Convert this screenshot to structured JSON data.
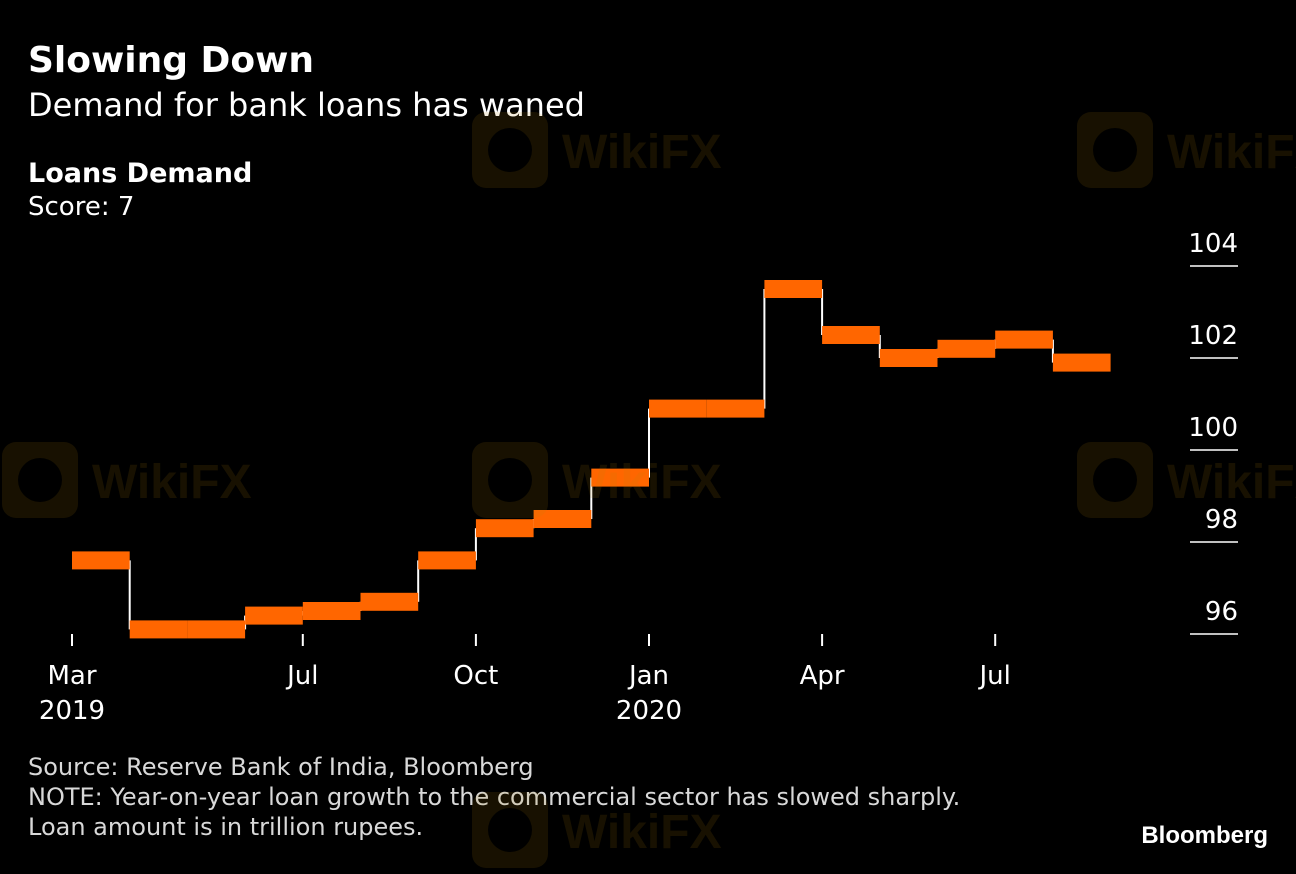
{
  "header": {
    "title": "Slowing Down",
    "subtitle": "Demand for bank loans has waned"
  },
  "panel": {
    "title": "Loans Demand",
    "score": "Score: 7"
  },
  "footer": {
    "source": "Source: Reserve Bank of India, Bloomberg",
    "note_line1": "NOTE: Year-on-year loan growth to the commercial sector has slowed sharply.",
    "note_line2": "Loan amount is in trillion rupees."
  },
  "brand": "Bloomberg",
  "watermark": "WikiFX",
  "colors": {
    "background": "#000000",
    "series": "#ff6600",
    "step_line": "#ffffff",
    "text": "#ffffff"
  },
  "chart_data": {
    "type": "line",
    "style": "step",
    "title": "Loans Demand",
    "subtitle": "Score: 7",
    "xlabel": "",
    "ylabel": "",
    "ylim": [
      96,
      104
    ],
    "y_ticks": [
      96,
      98,
      100,
      102,
      104
    ],
    "y_axis_side": "right",
    "x_ticks": [
      {
        "date": "2019-03",
        "label": "Mar",
        "year_label": "2019"
      },
      {
        "date": "2019-07",
        "label": "Jul",
        "year_label": ""
      },
      {
        "date": "2019-10",
        "label": "Oct",
        "year_label": ""
      },
      {
        "date": "2020-01",
        "label": "Jan",
        "year_label": "2020"
      },
      {
        "date": "2020-04",
        "label": "Apr",
        "year_label": ""
      },
      {
        "date": "2020-07",
        "label": "Jul",
        "year_label": ""
      }
    ],
    "series": [
      {
        "points": [
          {
            "x": "2019-03",
            "y": 97.6
          },
          {
            "x": "2019-04",
            "y": 96.1
          },
          {
            "x": "2019-05",
            "y": 96.1
          },
          {
            "x": "2019-06",
            "y": 96.4
          },
          {
            "x": "2019-07",
            "y": 96.5
          },
          {
            "x": "2019-08",
            "y": 96.7
          },
          {
            "x": "2019-09",
            "y": 97.6
          },
          {
            "x": "2019-10",
            "y": 98.3
          },
          {
            "x": "2019-11",
            "y": 98.5
          },
          {
            "x": "2019-12",
            "y": 99.4
          },
          {
            "x": "2020-01",
            "y": 100.9
          },
          {
            "x": "2020-02",
            "y": 100.9
          },
          {
            "x": "2020-03",
            "y": 103.5
          },
          {
            "x": "2020-04",
            "y": 102.5
          },
          {
            "x": "2020-05",
            "y": 102.0
          },
          {
            "x": "2020-06",
            "y": 102.2
          },
          {
            "x": "2020-07",
            "y": 102.4
          },
          {
            "x": "2020-08",
            "y": 101.9
          }
        ]
      }
    ]
  }
}
